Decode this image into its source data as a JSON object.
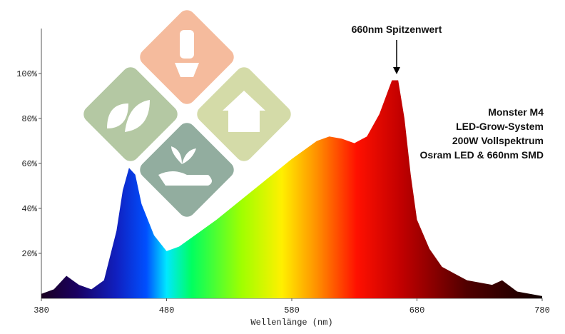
{
  "chart_data": {
    "type": "area",
    "title": "660nm Spitzenwert",
    "text_block": [
      "Monster M4",
      "LED-Grow-System",
      "200W Vollspektrum",
      "Osram LED & 660nm SMD"
    ],
    "xlabel": "Wellenlänge (nm)",
    "x": [
      380,
      390,
      400,
      410,
      420,
      430,
      440,
      445,
      450,
      455,
      460,
      470,
      480,
      490,
      500,
      520,
      540,
      560,
      580,
      600,
      610,
      620,
      630,
      640,
      650,
      660,
      665,
      670,
      675,
      680,
      690,
      700,
      720,
      740,
      748,
      760,
      780
    ],
    "values": [
      2,
      4,
      10,
      6,
      4,
      8,
      30,
      48,
      58,
      55,
      42,
      28,
      21,
      23,
      27,
      35,
      44,
      53,
      62,
      70,
      72,
      71,
      69,
      72,
      82,
      97,
      97,
      80,
      55,
      35,
      22,
      14,
      8,
      6,
      8,
      3,
      1
    ],
    "xlim": [
      380,
      780
    ],
    "xticks": [
      380,
      480,
      580,
      680,
      780
    ],
    "ylim": [
      0,
      120
    ],
    "yticks": [
      {
        "value": 20,
        "label": "20%"
      },
      {
        "value": 40,
        "label": "40%"
      },
      {
        "value": 60,
        "label": "60%"
      },
      {
        "value": 80,
        "label": "80%"
      },
      {
        "value": 100,
        "label": "100%"
      }
    ]
  }
}
